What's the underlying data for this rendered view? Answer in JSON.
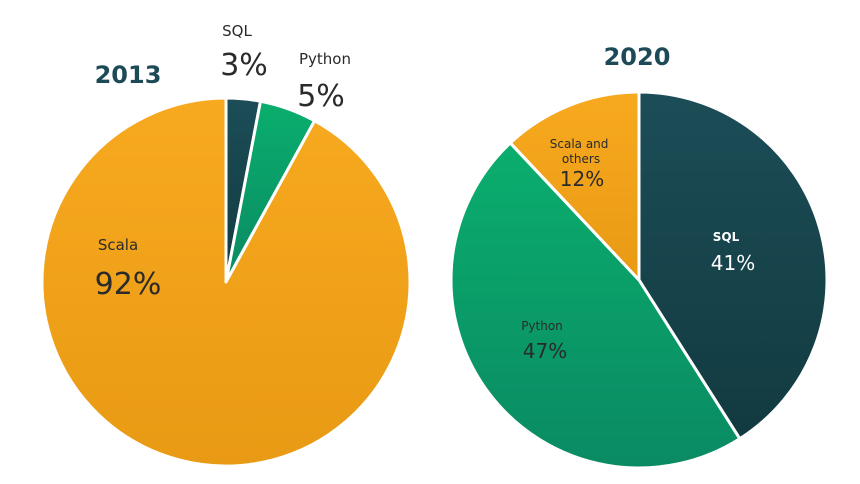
{
  "chart_data": [
    {
      "type": "pie",
      "title": "2013",
      "slices": [
        {
          "label": "SQL",
          "value": 3,
          "value_label": "3%",
          "color": "#1a4a53"
        },
        {
          "label": "Python",
          "value": 5,
          "value_label": "5%",
          "color": "#09a86a"
        },
        {
          "label": "Scala",
          "value": 92,
          "value_label": "92%",
          "color": "#f5a41d"
        }
      ]
    },
    {
      "type": "pie",
      "title": "2020",
      "slices": [
        {
          "label": "SQL",
          "value": 41,
          "value_label": "41%",
          "color": "#1a4a53"
        },
        {
          "label": "Python",
          "value": 47,
          "value_label": "47%",
          "color": "#09a86a"
        },
        {
          "label": "Scala and others",
          "value": 12,
          "value_label": "12%",
          "color": "#f5a41d"
        }
      ]
    }
  ]
}
